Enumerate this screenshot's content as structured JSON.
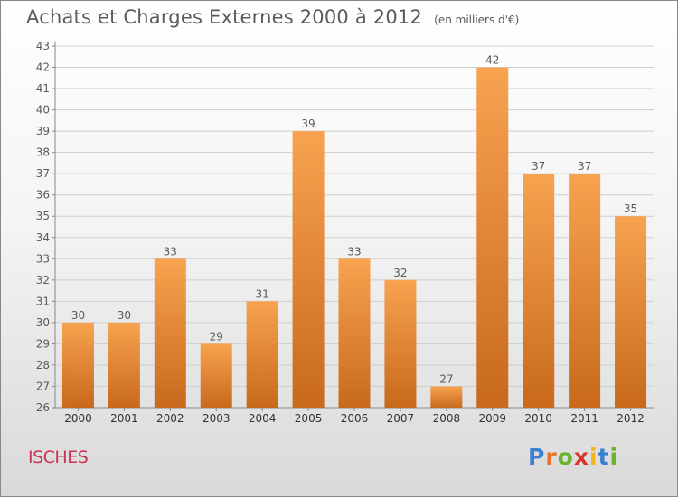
{
  "title": "Achats et Charges Externes 2000 à 2012",
  "unit": "(en milliers d'€)",
  "commune": "ISCHES",
  "brand": {
    "letters": [
      "P",
      "r",
      "o",
      "x",
      "i",
      "t",
      "i"
    ],
    "colors": [
      "#3a7fd0",
      "#e8732a",
      "#6ab42d",
      "#d8342b",
      "#f0b41e",
      "#3a7fd0",
      "#6ab42d"
    ]
  },
  "colors": {
    "bar_top": "#f7a350",
    "bar_bottom": "#c8691c",
    "text": "#5a5a5a",
    "grid": "#cfcfcf"
  },
  "chart_data": {
    "type": "bar",
    "title": "Achats et Charges Externes 2000 à 2012",
    "xlabel": "",
    "ylabel": "",
    "categories": [
      "2000",
      "2001",
      "2002",
      "2003",
      "2004",
      "2005",
      "2006",
      "2007",
      "2008",
      "2009",
      "2010",
      "2011",
      "2012"
    ],
    "values": [
      30,
      30,
      33,
      29,
      31,
      39,
      33,
      32,
      27,
      42,
      37,
      37,
      35
    ],
    "ylim": [
      26,
      43
    ],
    "yticks": [
      26,
      27,
      28,
      29,
      30,
      31,
      32,
      33,
      34,
      35,
      36,
      37,
      38,
      39,
      40,
      41,
      42,
      43
    ],
    "grid": true,
    "data_labels": true
  }
}
